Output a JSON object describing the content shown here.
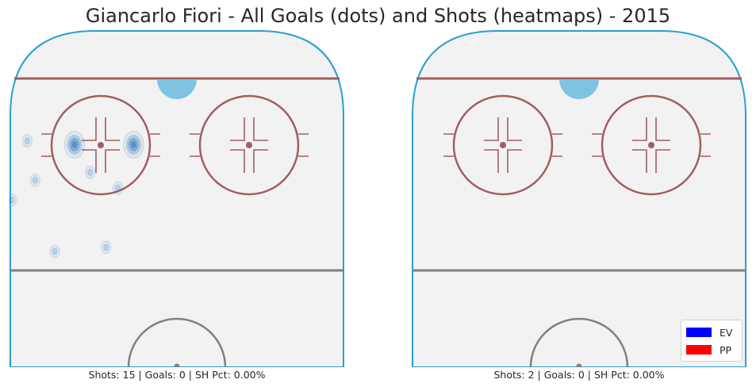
{
  "title": "Giancarlo Fiori - All Goals (dots) and Shots (heatmaps) - 2015",
  "legend": [
    {
      "label": "EV",
      "color": "#0000ff"
    },
    {
      "label": "PP",
      "color": "#ff0000"
    }
  ],
  "colors": {
    "ice": "#f2f2f2",
    "boards": "#2aa0d0",
    "goal_line": "#a35d60",
    "circle": "#a35d60",
    "center_line": "#808080",
    "crease": "#7ec4e2",
    "heat": "#3a7fc0"
  },
  "chart_data": [
    {
      "type": "heatmap",
      "panel": "left",
      "stats_text": "Shots: 15 | Goals: 0 | SH Pct: 0.00%",
      "shots": 15,
      "goals": 0,
      "sh_pct": "0.00%",
      "shot_density_peaks": [
        {
          "x": -26,
          "y": 71,
          "level": 2
        },
        {
          "x": -11,
          "y": 71,
          "level": 2
        },
        {
          "x": -38,
          "y": 72,
          "level": 1
        },
        {
          "x": -36,
          "y": 62,
          "level": 1
        },
        {
          "x": -22,
          "y": 64,
          "level": 1
        },
        {
          "x": -31,
          "y": 44,
          "level": 1
        },
        {
          "x": -18,
          "y": 45,
          "level": 1
        },
        {
          "x": -42,
          "y": 57,
          "level": 1
        },
        {
          "x": -15,
          "y": 60,
          "level": 1
        }
      ]
    },
    {
      "type": "heatmap",
      "panel": "right",
      "stats_text": "Shots: 2 | Goals: 0 | SH Pct: 0.00%",
      "shots": 2,
      "goals": 0,
      "sh_pct": "0.00%",
      "shot_density_peaks": []
    }
  ]
}
